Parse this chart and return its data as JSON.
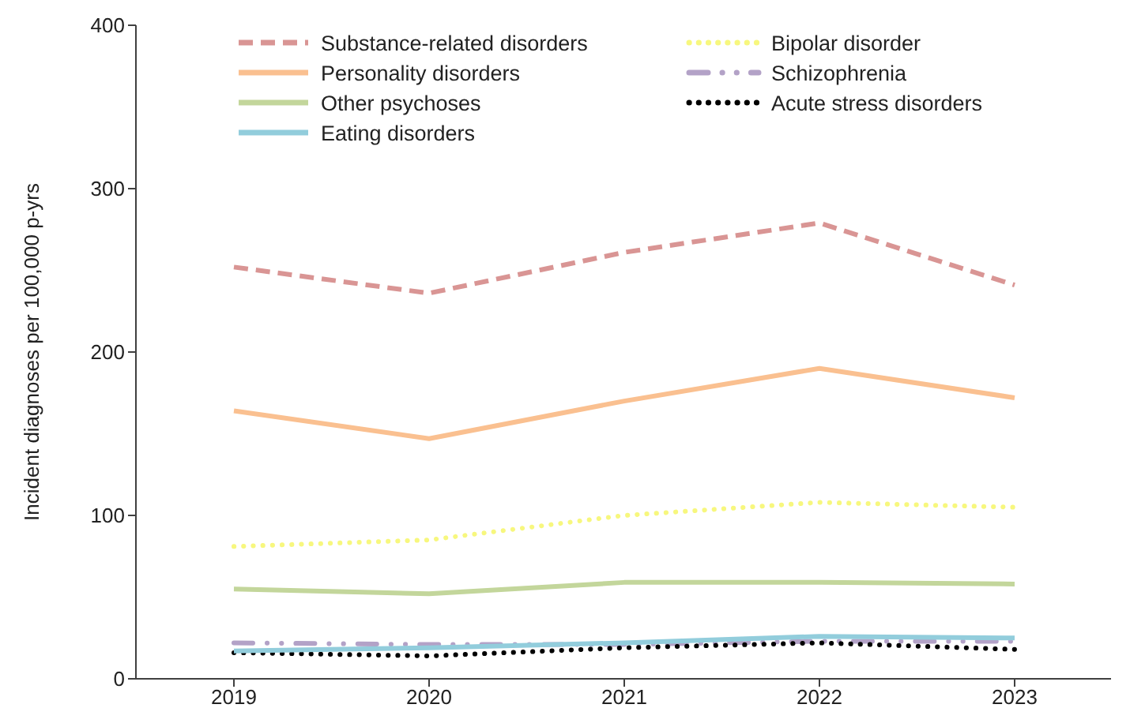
{
  "chart_data": {
    "type": "line",
    "ylabel": "Incident diagnoses per 100,000 p-yrs",
    "categories": [
      "2019",
      "2020",
      "2021",
      "2022",
      "2023"
    ],
    "ylim": [
      0,
      400
    ],
    "yticks": [
      0,
      100,
      200,
      300,
      400
    ],
    "legend": "top",
    "marker": "none",
    "series": [
      {
        "name": "Substance-related disorders",
        "color": "#d99594",
        "line_style": "dashed",
        "values": [
          252,
          236,
          261,
          279,
          241
        ]
      },
      {
        "name": "Bipolar disorder",
        "color": "#f7f77e",
        "line_style": "dotted",
        "values": [
          81,
          85,
          100,
          108,
          105
        ]
      },
      {
        "name": "Personality disorders",
        "color": "#fac090",
        "line_style": "solid",
        "values": [
          164,
          147,
          170,
          190,
          172
        ]
      },
      {
        "name": "Schizophrenia",
        "color": "#b3a2c7",
        "line_style": "dashdot",
        "values": [
          22,
          21,
          21,
          23,
          23
        ]
      },
      {
        "name": "Other psychoses",
        "color": "#c3d69b",
        "line_style": "solid",
        "values": [
          55,
          52,
          59,
          59,
          58
        ]
      },
      {
        "name": "Acute stress disorders",
        "color": "#000000",
        "line_style": "dotted",
        "values": [
          16,
          14,
          19,
          22,
          18
        ]
      },
      {
        "name": "Eating disorders",
        "color": "#92cddc",
        "line_style": "solid",
        "values": [
          17,
          19,
          22,
          26,
          25
        ]
      }
    ]
  }
}
